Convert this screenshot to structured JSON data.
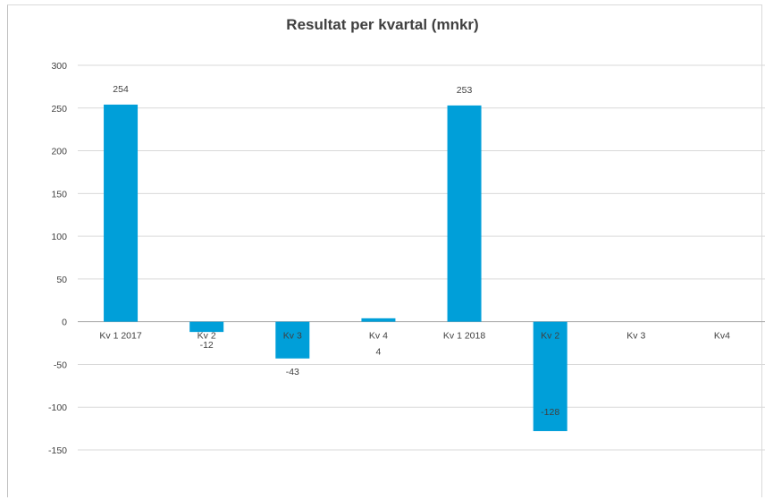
{
  "chart_data": {
    "type": "bar",
    "title": "Resultat per kvartal (mnkr)",
    "categories": [
      "Kv 1 2017",
      "Kv 2",
      "Kv 3",
      "Kv 4",
      "Kv 1 2018",
      "Kv 2",
      "Kv 3",
      "Kv4"
    ],
    "values": [
      254,
      -12,
      -43,
      4,
      253,
      -128,
      null,
      null
    ],
    "data_labels": [
      "254",
      "-12",
      "-43",
      "4",
      "253",
      "-128",
      "",
      ""
    ],
    "ylim": [
      -150,
      300
    ],
    "yticks": [
      300,
      250,
      200,
      150,
      100,
      50,
      0,
      -50,
      -100,
      -150
    ],
    "grid": true,
    "legend": "none",
    "bar_color": "#009fd9"
  }
}
